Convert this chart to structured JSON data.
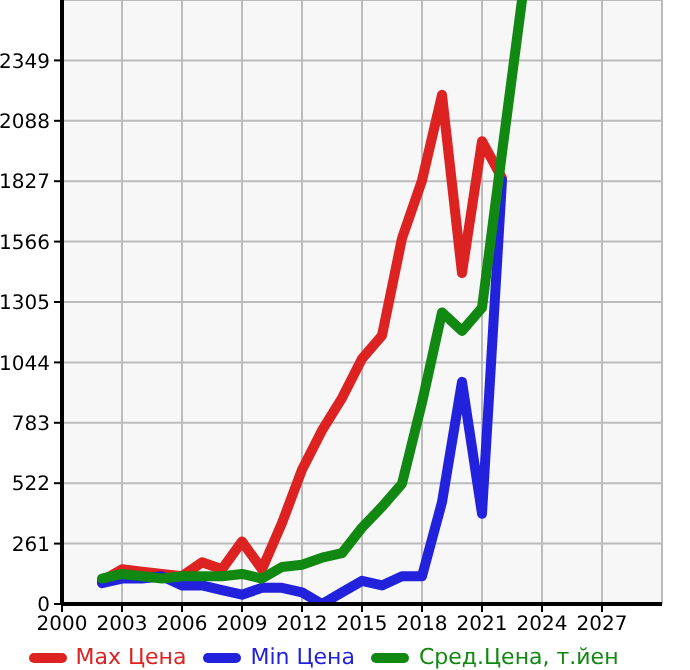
{
  "chart_data": {
    "type": "line",
    "x": [
      2002,
      2003,
      2004,
      2005,
      2006,
      2007,
      2008,
      2009,
      2010,
      2011,
      2012,
      2013,
      2014,
      2015,
      2016,
      2017,
      2018,
      2019,
      2020,
      2021,
      2022,
      2023
    ],
    "series": [
      {
        "name": "Max Цена",
        "color": "#dd2222",
        "values": [
          100,
          150,
          140,
          130,
          120,
          180,
          150,
          270,
          150,
          350,
          580,
          750,
          890,
          1060,
          1160,
          1580,
          1830,
          2200,
          1430,
          2000,
          1840,
          null
        ]
      },
      {
        "name": "Min Цена",
        "color": "#2222dd",
        "values": [
          90,
          110,
          110,
          120,
          80,
          80,
          60,
          40,
          70,
          70,
          50,
          0,
          50,
          100,
          80,
          120,
          120,
          440,
          960,
          390,
          1830,
          null
        ]
      },
      {
        "name": "Сред.Цена, т.йен",
        "color": "#118811",
        "values": [
          110,
          130,
          120,
          110,
          120,
          120,
          120,
          130,
          110,
          160,
          170,
          200,
          220,
          330,
          420,
          520,
          870,
          1260,
          1180,
          1280,
          1950,
          2610
        ]
      }
    ],
    "xlim": [
      2000,
      2030
    ],
    "xticks": [
      2000,
      2003,
      2006,
      2009,
      2012,
      2015,
      2018,
      2021,
      2024,
      2027
    ],
    "ylim": [
      0,
      2610
    ],
    "yticks": [
      0,
      261,
      522,
      783,
      1044,
      1305,
      1566,
      1827,
      2088,
      2349
    ],
    "grid": true,
    "legend": "bottom",
    "marker": "none",
    "line_style": "solid"
  }
}
